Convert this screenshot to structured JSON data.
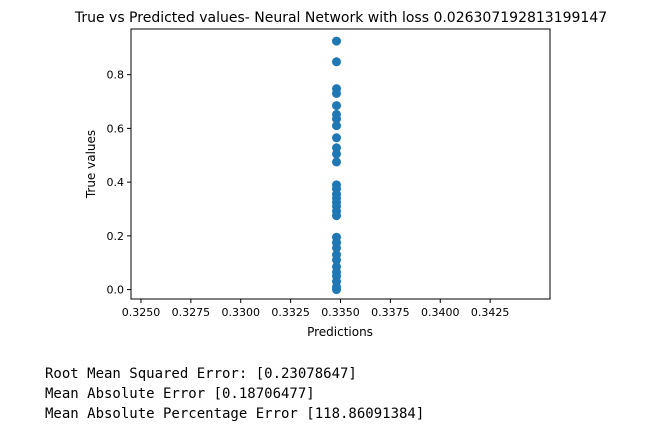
{
  "chart_data": {
    "type": "scatter",
    "title": "True vs Predicted values- Neural Network with loss 0.026307192813199147",
    "xlabel": "Predictions",
    "ylabel": "True values",
    "xlim": [
      0.3245,
      0.3455
    ],
    "ylim": [
      -0.035,
      0.97
    ],
    "xticks": [
      "0.3250",
      "0.3275",
      "0.3300",
      "0.3325",
      "0.3350",
      "0.3375",
      "0.3400",
      "0.3425"
    ],
    "yticks": [
      "0.0",
      "0.2",
      "0.4",
      "0.6",
      "0.8"
    ],
    "grid": false,
    "color": "#1f77b4",
    "points": [
      {
        "x": 0.3348,
        "y": 0.925
      },
      {
        "x": 0.3348,
        "y": 0.848
      },
      {
        "x": 0.3348,
        "y": 0.748
      },
      {
        "x": 0.3348,
        "y": 0.73
      },
      {
        "x": 0.3348,
        "y": 0.685
      },
      {
        "x": 0.3348,
        "y": 0.652
      },
      {
        "x": 0.3348,
        "y": 0.635
      },
      {
        "x": 0.3348,
        "y": 0.61
      },
      {
        "x": 0.3348,
        "y": 0.565
      },
      {
        "x": 0.3348,
        "y": 0.528
      },
      {
        "x": 0.3348,
        "y": 0.505
      },
      {
        "x": 0.3348,
        "y": 0.475
      },
      {
        "x": 0.3348,
        "y": 0.39
      },
      {
        "x": 0.3348,
        "y": 0.375
      },
      {
        "x": 0.3348,
        "y": 0.355
      },
      {
        "x": 0.3348,
        "y": 0.34
      },
      {
        "x": 0.3348,
        "y": 0.325
      },
      {
        "x": 0.3348,
        "y": 0.31
      },
      {
        "x": 0.3348,
        "y": 0.292
      },
      {
        "x": 0.3348,
        "y": 0.275
      },
      {
        "x": 0.3348,
        "y": 0.195
      },
      {
        "x": 0.3348,
        "y": 0.175
      },
      {
        "x": 0.3348,
        "y": 0.155
      },
      {
        "x": 0.3348,
        "y": 0.13
      },
      {
        "x": 0.3348,
        "y": 0.11
      },
      {
        "x": 0.3348,
        "y": 0.085
      },
      {
        "x": 0.3348,
        "y": 0.065
      },
      {
        "x": 0.3348,
        "y": 0.05
      },
      {
        "x": 0.3348,
        "y": 0.03
      },
      {
        "x": 0.3348,
        "y": 0.01
      },
      {
        "x": 0.3348,
        "y": 0.0
      }
    ]
  },
  "metrics": {
    "rmse": "Root Mean Squared Error: [0.23078647]",
    "mae": "Mean Absolute Error [0.18706477]",
    "mape": "Mean Absolute Percentage Error [118.86091384]"
  }
}
